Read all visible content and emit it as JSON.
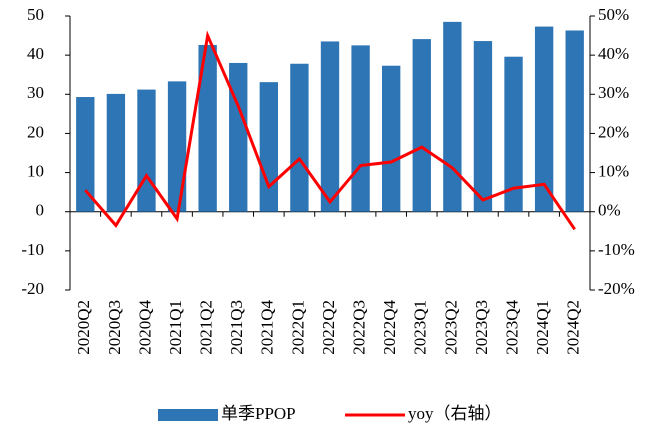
{
  "chart_data": {
    "type": "bar_line",
    "categories": [
      "2020Q2",
      "2020Q3",
      "2020Q4",
      "2021Q1",
      "2021Q2",
      "2021Q3",
      "2021Q4",
      "2022Q1",
      "2022Q2",
      "2022Q3",
      "2022Q4",
      "2023Q1",
      "2023Q2",
      "2023Q3",
      "2023Q4",
      "2024Q1",
      "2024Q2"
    ],
    "series": [
      {
        "name": "单季PPOP",
        "type": "bar",
        "color": "#2e75b6",
        "values": [
          29.3,
          30.1,
          31.2,
          33.3,
          42.6,
          38.0,
          33.1,
          37.8,
          43.5,
          42.5,
          37.3,
          44.1,
          48.5,
          43.6,
          39.6,
          47.3,
          46.3
        ]
      },
      {
        "name": "yoy（右轴）",
        "type": "line",
        "axis": "y2",
        "color": "#ff0000",
        "values": [
          5.5,
          -3.5,
          9.2,
          -1.8,
          45,
          27,
          6.4,
          13.5,
          2.5,
          11.8,
          12.7,
          16.5,
          11.2,
          3.0,
          6.0,
          7.0,
          -4.5
        ]
      }
    ],
    "ylim": [
      -20,
      50
    ],
    "yticks": [
      -20,
      -10,
      0,
      10,
      20,
      30,
      40,
      50
    ],
    "y2lim": [
      -20,
      50
    ],
    "y2ticks": [
      {
        "value": -20,
        "label": "-20%"
      },
      {
        "value": -10,
        "label": "-10%"
      },
      {
        "value": 0,
        "label": "0%"
      },
      {
        "value": 10,
        "label": "10%"
      },
      {
        "value": 20,
        "label": "20%"
      },
      {
        "value": 30,
        "label": "30%"
      },
      {
        "value": 40,
        "label": "40%"
      },
      {
        "value": 50,
        "label": "50%"
      }
    ]
  }
}
